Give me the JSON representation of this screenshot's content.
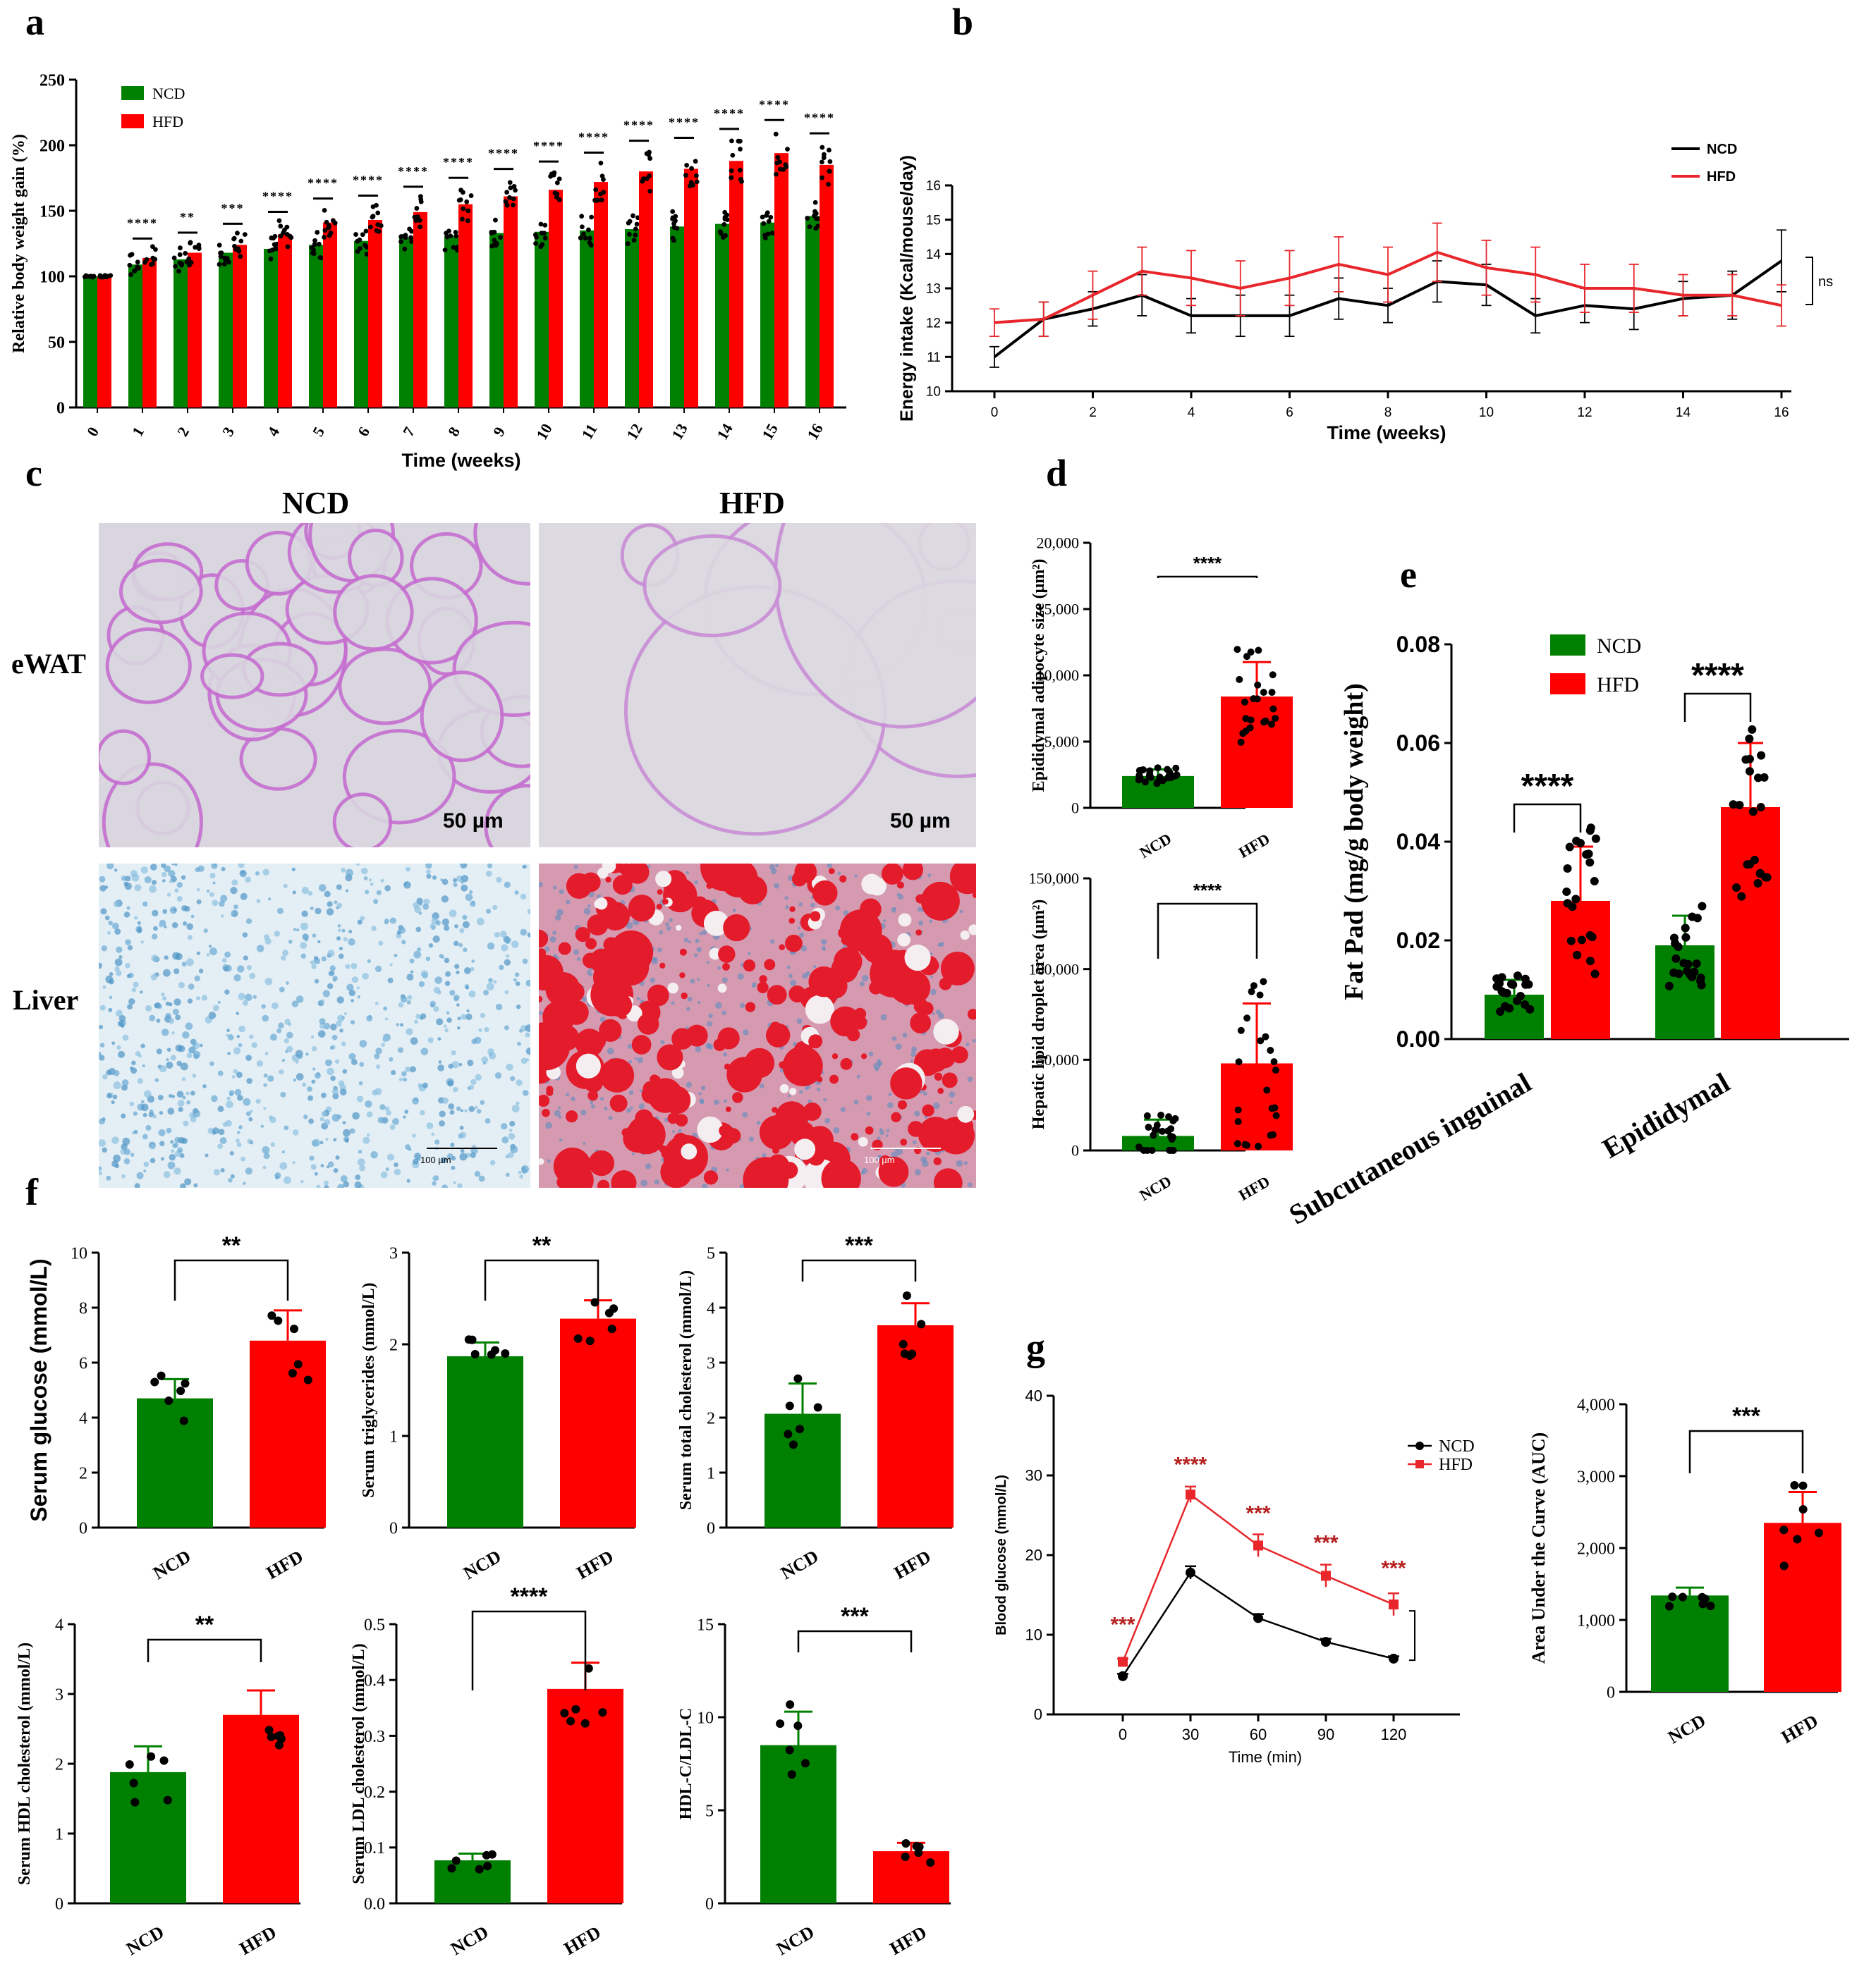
{
  "figure": {
    "labels": {
      "a": "a",
      "b": "b",
      "c": "c",
      "d": "d",
      "e": "e",
      "f": "f",
      "g": "g"
    }
  },
  "colors": {
    "ncd": "#008000",
    "hfd": "#ff0000",
    "black": "#000000",
    "line_red": "#e8262b"
  },
  "chart_data": [
    {
      "id": "a",
      "type": "bar",
      "title": "",
      "xlabel": "Time (weeks)",
      "ylabel": "Relative body weight gain (%)",
      "categories": [
        "0",
        "1",
        "2",
        "3",
        "4",
        "5",
        "6",
        "7",
        "8",
        "9",
        "10",
        "11",
        "12",
        "13",
        "14",
        "15",
        "16"
      ],
      "ylim": [
        0,
        250
      ],
      "yticks": [
        "0",
        "50",
        "100",
        "150",
        "200",
        "250"
      ],
      "legend": [
        "NCD",
        "HFD"
      ],
      "series": [
        {
          "name": "NCD",
          "values": [
            100,
            109,
            113,
            118,
            121,
            124,
            127,
            129,
            131,
            133,
            134,
            135,
            136,
            138,
            140,
            141,
            146
          ]
        },
        {
          "name": "HFD",
          "values": [
            100,
            114,
            118,
            124,
            132,
            141,
            143,
            149,
            155,
            161,
            166,
            172,
            180,
            182,
            188,
            194,
            185
          ]
        }
      ],
      "significance": [
        "",
        "****",
        "**",
        "***",
        "****",
        "****",
        "****",
        "****",
        "****",
        "****",
        "****",
        "****",
        "****",
        "****",
        "****",
        "****",
        "****"
      ]
    },
    {
      "id": "b",
      "type": "line",
      "xlabel": "Time (weeks)",
      "ylabel": "Energy intake (Kcal/mouse/day)",
      "xlim": [
        0,
        16
      ],
      "ylim": [
        10,
        16
      ],
      "xticks": [
        "0",
        "2",
        "4",
        "6",
        "8",
        "10",
        "12",
        "14",
        "16"
      ],
      "yticks": [
        "10",
        "11",
        "12",
        "13",
        "14",
        "15",
        "16"
      ],
      "annotation": "ns",
      "x": [
        0,
        1,
        2,
        3,
        4,
        5,
        6,
        7,
        8,
        9,
        10,
        11,
        12,
        13,
        14,
        15,
        16
      ],
      "series": [
        {
          "name": "NCD",
          "values": [
            11.0,
            12.1,
            12.4,
            12.8,
            12.2,
            12.2,
            12.2,
            12.7,
            12.5,
            13.2,
            13.1,
            12.2,
            12.5,
            12.4,
            12.7,
            12.8,
            13.8
          ],
          "errors": [
            0.3,
            0.5,
            0.5,
            0.6,
            0.5,
            0.6,
            0.6,
            0.6,
            0.5,
            0.6,
            0.6,
            0.5,
            0.5,
            0.6,
            0.5,
            0.7,
            0.9
          ]
        },
        {
          "name": "HFD",
          "values": [
            12.0,
            12.1,
            12.8,
            13.5,
            13.3,
            13.0,
            13.3,
            13.7,
            13.4,
            14.05,
            13.6,
            13.4,
            13.0,
            13.0,
            12.8,
            12.8,
            12.5
          ],
          "errors": [
            0.4,
            0.5,
            0.7,
            0.7,
            0.8,
            0.8,
            0.8,
            0.8,
            0.8,
            0.85,
            0.8,
            0.8,
            0.7,
            0.7,
            0.6,
            0.6,
            0.6
          ]
        }
      ]
    },
    {
      "id": "d1",
      "type": "bar",
      "xlabel": "",
      "ylabel": "Epididymal adipocyte size (μm²)",
      "categories": [
        "NCD",
        "HFD"
      ],
      "values": [
        2400,
        8400
      ],
      "errors": [
        500,
        2600
      ],
      "ylim": [
        0,
        20000
      ],
      "yticks": [
        "0",
        "5,000",
        "10,000",
        "15,000",
        "20,000"
      ],
      "significance": "****"
    },
    {
      "id": "d2",
      "type": "bar",
      "xlabel": "",
      "ylabel": "Hepatic lipid droplet area (μm²)",
      "categories": [
        "NCD",
        "HFD"
      ],
      "values": [
        8000,
        48000
      ],
      "errors": [
        9000,
        33000
      ],
      "ylim": [
        0,
        150000
      ],
      "yticks": [
        "0",
        "50,000",
        "100,000",
        "150,000"
      ],
      "significance": "****"
    },
    {
      "id": "e",
      "type": "bar",
      "xlabel": "",
      "ylabel": "Fat Pad (mg/g body weight)",
      "categories": [
        "Subcutaneous inguinal",
        "Epididymal"
      ],
      "legend": [
        "NCD",
        "HFD"
      ],
      "series": [
        {
          "name": "NCD",
          "values": [
            0.009,
            0.019
          ],
          "errors": [
            0.003,
            0.006
          ]
        },
        {
          "name": "HFD",
          "values": [
            0.028,
            0.047
          ],
          "errors": [
            0.011,
            0.013
          ]
        }
      ],
      "ylim": [
        0,
        0.08
      ],
      "yticks": [
        "0.00",
        "0.02",
        "0.04",
        "0.06",
        "0.08"
      ],
      "significance": [
        "****",
        "****"
      ]
    },
    {
      "id": "f1",
      "type": "bar",
      "ylabel": "Serum glucose (mmol/L)",
      "categories": [
        "NCD",
        "HFD"
      ],
      "values": [
        4.7,
        6.8
      ],
      "errors": [
        0.7,
        1.1
      ],
      "ylim": [
        0,
        10
      ],
      "yticks": [
        "0",
        "2",
        "4",
        "6",
        "8",
        "10"
      ],
      "significance": "**"
    },
    {
      "id": "f2",
      "type": "bar",
      "ylabel": "Serum triglycerides (mmol/L)",
      "categories": [
        "NCD",
        "HFD"
      ],
      "values": [
        1.87,
        2.28
      ],
      "errors": [
        0.15,
        0.2
      ],
      "ylim": [
        0,
        3
      ],
      "yticks": [
        "0",
        "1",
        "2",
        "3"
      ],
      "significance": "**"
    },
    {
      "id": "f3",
      "type": "bar",
      "ylabel": "Serum total cholesterol (mmol/L)",
      "categories": [
        "NCD",
        "HFD"
      ],
      "values": [
        2.07,
        3.68
      ],
      "errors": [
        0.55,
        0.4
      ],
      "ylim": [
        0,
        5
      ],
      "yticks": [
        "0",
        "1",
        "2",
        "3",
        "4",
        "5"
      ],
      "significance": "***"
    },
    {
      "id": "f4",
      "type": "bar",
      "ylabel": "Serum HDL cholesterol (mmol/L)",
      "categories": [
        "NCD",
        "HFD"
      ],
      "values": [
        1.88,
        2.7
      ],
      "errors": [
        0.37,
        0.35
      ],
      "ylim": [
        0,
        4
      ],
      "yticks": [
        "0",
        "1",
        "2",
        "3",
        "4"
      ],
      "significance": "**"
    },
    {
      "id": "f5",
      "type": "bar",
      "ylabel": "Serum LDL cholesterol (mmol/L)",
      "categories": [
        "NCD",
        "HFD"
      ],
      "values": [
        0.077,
        0.384
      ],
      "errors": [
        0.012,
        0.047
      ],
      "ylim": [
        0,
        0.5
      ],
      "yticks": [
        "0.0",
        "0.1",
        "0.2",
        "0.3",
        "0.4",
        "0.5"
      ],
      "significance": "****"
    },
    {
      "id": "f6",
      "type": "bar",
      "ylabel": "HDL-C/LDL-C",
      "categories": [
        "NCD",
        "HFD"
      ],
      "values": [
        8.5,
        2.8
      ],
      "errors": [
        1.8,
        0.45
      ],
      "ylim": [
        0,
        15
      ],
      "yticks": [
        "0",
        "5",
        "10",
        "15"
      ],
      "significance": "***"
    },
    {
      "id": "g1",
      "type": "line",
      "xlabel": "Time (min)",
      "ylabel": "Blood glucose (mmol/L)",
      "x": [
        0,
        30,
        60,
        90,
        120
      ],
      "xticks": [
        "0",
        "30",
        "60",
        "90",
        "120"
      ],
      "ylim": [
        0,
        40
      ],
      "yticks": [
        "0",
        "10",
        "20",
        "30",
        "40"
      ],
      "legend": [
        "NCD",
        "HFD"
      ],
      "significance": [
        "***",
        "****",
        "***",
        "***",
        "***"
      ],
      "series": [
        {
          "name": "NCD",
          "values": [
            4.8,
            17.8,
            12.1,
            9.1,
            7.0
          ],
          "errors": [
            0.3,
            0.8,
            0.5,
            0.4,
            0.3
          ]
        },
        {
          "name": "HFD",
          "values": [
            6.6,
            27.6,
            21.2,
            17.4,
            13.8
          ],
          "errors": [
            0.4,
            1.0,
            1.4,
            1.4,
            1.4
          ]
        }
      ]
    },
    {
      "id": "g2",
      "type": "bar",
      "ylabel": "Area Under the Curve (AUC)",
      "categories": [
        "NCD",
        "HFD"
      ],
      "values": [
        1340,
        2350
      ],
      "errors": [
        110,
        430
      ],
      "ylim": [
        0,
        4000
      ],
      "yticks": [
        "0",
        "1,000",
        "2,000",
        "3,000",
        "4,000"
      ],
      "significance": "***"
    }
  ],
  "micrographs": {
    "col_titles": [
      "NCD",
      "HFD"
    ],
    "row_labels": [
      "eWAT",
      "Liver"
    ],
    "scale_top": "50 µm",
    "scale_bottom": "100 µm"
  }
}
